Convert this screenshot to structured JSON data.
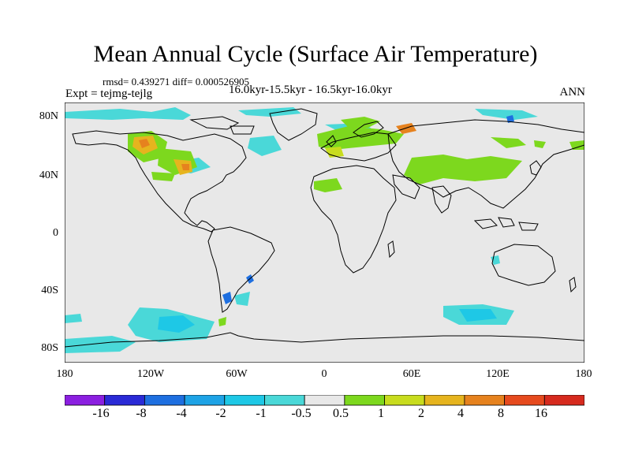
{
  "title": "Mean Annual Cycle (Surface Air Temperature)",
  "stats": "rmsd= 0.439271 diff= 0.000526905",
  "experiment": "Expt = tejmg-tejlg",
  "period": "16.0kyr-15.5kyr - 16.5kyr-16.0kyr",
  "season": "ANN",
  "lat_ticks": [
    "80N",
    "40N",
    "0",
    "40S",
    "80S"
  ],
  "lon_ticks": [
    "180",
    "120W",
    "60W",
    "0",
    "60E",
    "120E",
    "180"
  ],
  "colorbar": {
    "labels": [
      "-16",
      "-8",
      "-4",
      "-2",
      "-1",
      "-0.5",
      "0.5",
      "1",
      "2",
      "4",
      "8",
      "16"
    ],
    "colors": [
      "#8b1fe0",
      "#2a2ad6",
      "#1e6fe0",
      "#1ea3e6",
      "#1ec8e6",
      "#4ad8d8",
      "#e8e8e8",
      "#7dd81e",
      "#c8dc1e",
      "#e6b41e",
      "#e6821e",
      "#e64a1e",
      "#d62a1e"
    ]
  },
  "map_colors": {
    "background": "#e8e8e8",
    "coast": "#000000"
  }
}
